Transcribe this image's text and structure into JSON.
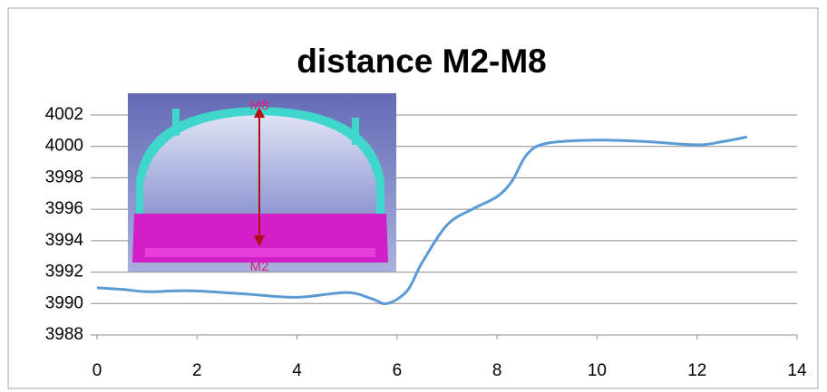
{
  "chart_data": {
    "type": "line",
    "title": "distance M2-M8",
    "x": [
      0,
      0.5,
      1,
      1.5,
      2,
      3,
      4,
      5,
      5.5,
      5.8,
      6.2,
      6.5,
      7,
      7.5,
      8,
      8.3,
      8.6,
      9,
      10,
      11,
      12,
      12.5,
      13
    ],
    "series": [
      {
        "color": "#5b9bd5",
        "values": [
          3991.0,
          3990.9,
          3990.75,
          3990.8,
          3990.8,
          3990.6,
          3990.4,
          3990.7,
          3990.3,
          3990.0,
          3990.8,
          3992.6,
          3995.0,
          3996.0,
          3996.8,
          3997.8,
          3999.5,
          4000.2,
          4000.4,
          4000.3,
          4000.1,
          4000.3,
          4000.6
        ]
      }
    ],
    "xlim": [
      0,
      14
    ],
    "xticks": [
      0,
      2,
      4,
      6,
      8,
      10,
      12,
      14
    ],
    "ylim": [
      3988,
      4002
    ],
    "yticks": [
      3988,
      3990,
      3992,
      3994,
      3996,
      3998,
      4000,
      4002
    ],
    "grid": true,
    "annotations": [
      "M8",
      "M2"
    ]
  }
}
